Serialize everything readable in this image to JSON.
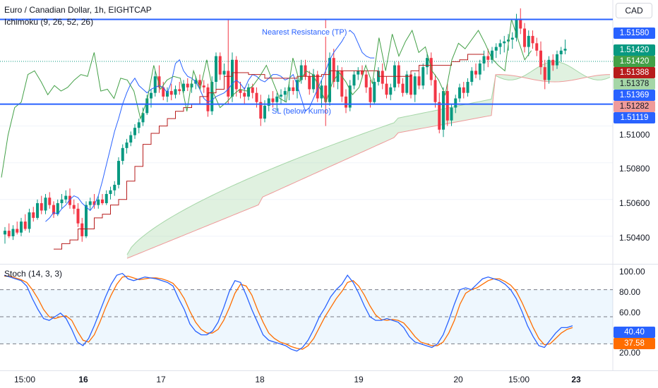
{
  "header": {
    "title": "Euro / Canadian Dollar, 1h, EIGHTCAP",
    "indicator": "Ichimoku (9, 26, 52, 26)",
    "currency": "CAD"
  },
  "colors": {
    "up": "#089981",
    "down": "#f23645",
    "blue": "#2962ff",
    "tenkan": "#2962ff",
    "kijun": "#b71c1c",
    "chikou": "#43a047",
    "cloud_green": "#a5d6a7",
    "cloud_red": "#ef9a9a",
    "stoch_k": "#2962ff",
    "stoch_d": "#ff6d00"
  },
  "lines": {
    "resistance": {
      "label": "Nearest Resistance (TP)",
      "value": "1.51580"
    },
    "support": {
      "label": "SL (below Kumo)",
      "value": "1.51119"
    }
  },
  "price_axis": {
    "ticks": [
      "1.51000",
      "1.50800",
      "1.50600",
      "1.50400"
    ],
    "tags": [
      {
        "value": "1.51580",
        "color": "#2962ff"
      },
      {
        "value": "1.51420",
        "color": "#089981"
      },
      {
        "value": "1.51420",
        "color": "#43a047"
      },
      {
        "value": "1.51388",
        "color": "#b71c1c"
      },
      {
        "value": "1.51378",
        "color": "#a5d6a7"
      },
      {
        "value": "1.51369",
        "color": "#2962ff"
      },
      {
        "value": "1.51282",
        "color": "#ef9a9a"
      },
      {
        "value": "1.51119",
        "color": "#2962ff"
      }
    ]
  },
  "stoch": {
    "label": "Stoch (14, 3, 3)",
    "ticks": [
      "100.00",
      "80.00",
      "60.00",
      "40.00",
      "20.00"
    ],
    "k_value": "40.40",
    "d_value": "37.58"
  },
  "time_axis": [
    {
      "label": "15:00",
      "bold": false
    },
    {
      "label": "16",
      "bold": true
    },
    {
      "label": "17",
      "bold": false
    },
    {
      "label": "18",
      "bold": false
    },
    {
      "label": "19",
      "bold": false
    },
    {
      "label": "20",
      "bold": false
    },
    {
      "label": "15:00",
      "bold": false
    },
    {
      "label": "23",
      "bold": true
    }
  ],
  "chart_data": {
    "type": "candlestick",
    "title": "Euro / Canadian Dollar, 1h, EIGHTCAP",
    "ylim": [
      1.5025,
      1.5167
    ],
    "horizontal_lines": [
      {
        "name": "Nearest Resistance (TP)",
        "y": 1.5158
      },
      {
        "name": "SL (below Kumo)",
        "y": 1.51119
      }
    ],
    "candles": [
      [
        1.5041,
        1.5045,
        1.5036,
        1.5043
      ],
      [
        1.5043,
        1.5047,
        1.5039,
        1.504
      ],
      [
        1.504,
        1.5046,
        1.5038,
        1.5044
      ],
      [
        1.5044,
        1.5048,
        1.5041,
        1.5042
      ],
      [
        1.5042,
        1.505,
        1.504,
        1.5048
      ],
      [
        1.5048,
        1.5052,
        1.5043,
        1.5044
      ],
      [
        1.5044,
        1.5055,
        1.5042,
        1.5053
      ],
      [
        1.5053,
        1.5056,
        1.5048,
        1.505
      ],
      [
        1.505,
        1.506,
        1.5049,
        1.5058
      ],
      [
        1.5058,
        1.5062,
        1.5052,
        1.5054
      ],
      [
        1.5054,
        1.5063,
        1.5052,
        1.5061
      ],
      [
        1.5061,
        1.5064,
        1.5055,
        1.5057
      ],
      [
        1.5057,
        1.5059,
        1.505,
        1.5052
      ],
      [
        1.5052,
        1.506,
        1.5051,
        1.5058
      ],
      [
        1.5058,
        1.5063,
        1.5055,
        1.506
      ],
      [
        1.506,
        1.5065,
        1.5058,
        1.5062
      ],
      [
        1.5062,
        1.5066,
        1.5055,
        1.5057
      ],
      [
        1.5057,
        1.506,
        1.5052,
        1.5055
      ],
      [
        1.5055,
        1.5058,
        1.5045,
        1.5047
      ],
      [
        1.5047,
        1.505,
        1.5037,
        1.504
      ],
      [
        1.504,
        1.5059,
        1.5039,
        1.5057
      ],
      [
        1.5057,
        1.5061,
        1.5054,
        1.5059
      ],
      [
        1.5059,
        1.5063,
        1.5055,
        1.5057
      ],
      [
        1.5057,
        1.5062,
        1.5055,
        1.506
      ],
      [
        1.506,
        1.5063,
        1.5057,
        1.5058
      ],
      [
        1.5058,
        1.5065,
        1.5057,
        1.5063
      ],
      [
        1.5063,
        1.5067,
        1.506,
        1.5065
      ],
      [
        1.5065,
        1.507,
        1.5062,
        1.5068
      ],
      [
        1.5068,
        1.5083,
        1.5066,
        1.5081
      ],
      [
        1.5081,
        1.509,
        1.5079,
        1.5088
      ],
      [
        1.5088,
        1.5093,
        1.5085,
        1.5091
      ],
      [
        1.5091,
        1.5097,
        1.5089,
        1.5095
      ],
      [
        1.5095,
        1.5101,
        1.5093,
        1.5099
      ],
      [
        1.5099,
        1.5104,
        1.5096,
        1.5102
      ],
      [
        1.5102,
        1.511,
        1.51,
        1.5107
      ],
      [
        1.5107,
        1.5117,
        1.5106,
        1.5115
      ],
      [
        1.5115,
        1.512,
        1.511,
        1.5118
      ],
      [
        1.5118,
        1.513,
        1.5116,
        1.5127
      ],
      [
        1.5127,
        1.5133,
        1.5118,
        1.5121
      ],
      [
        1.5121,
        1.5124,
        1.5114,
        1.5116
      ],
      [
        1.5116,
        1.5121,
        1.5113,
        1.5119
      ],
      [
        1.5119,
        1.5123,
        1.5114,
        1.5117
      ],
      [
        1.5117,
        1.5122,
        1.5115,
        1.512
      ],
      [
        1.512,
        1.5124,
        1.5117,
        1.5119
      ],
      [
        1.5119,
        1.5125,
        1.5118,
        1.5123
      ],
      [
        1.5123,
        1.5126,
        1.5119,
        1.5121
      ],
      [
        1.5121,
        1.5125,
        1.5118,
        1.5123
      ],
      [
        1.5123,
        1.5127,
        1.512,
        1.5125
      ],
      [
        1.5125,
        1.5128,
        1.512,
        1.5122
      ],
      [
        1.5122,
        1.5125,
        1.5118,
        1.5121
      ],
      [
        1.5121,
        1.5123,
        1.5105,
        1.5108
      ],
      [
        1.5108,
        1.5127,
        1.5106,
        1.5124
      ],
      [
        1.5124,
        1.514,
        1.512,
        1.5138
      ],
      [
        1.5138,
        1.514,
        1.5125,
        1.5128
      ],
      [
        1.5128,
        1.5134,
        1.512,
        1.513
      ],
      [
        1.513,
        1.5158,
        1.5112,
        1.5116
      ],
      [
        1.5116,
        1.514,
        1.5113,
        1.5136
      ],
      [
        1.5136,
        1.5138,
        1.5116,
        1.512
      ],
      [
        1.512,
        1.5124,
        1.5115,
        1.5118
      ],
      [
        1.5118,
        1.5121,
        1.5112,
        1.5116
      ],
      [
        1.5116,
        1.5123,
        1.5114,
        1.5121
      ],
      [
        1.5121,
        1.5123,
        1.5115,
        1.5118
      ],
      [
        1.5118,
        1.5121,
        1.511,
        1.5113
      ],
      [
        1.5113,
        1.5117,
        1.51,
        1.5104
      ],
      [
        1.5104,
        1.5114,
        1.5102,
        1.5111
      ],
      [
        1.5111,
        1.5117,
        1.5108,
        1.5115
      ],
      [
        1.5115,
        1.5119,
        1.511,
        1.5113
      ],
      [
        1.5113,
        1.5118,
        1.5108,
        1.5116
      ],
      [
        1.5116,
        1.512,
        1.5112,
        1.5117
      ],
      [
        1.5117,
        1.5121,
        1.5113,
        1.5119
      ],
      [
        1.5119,
        1.5124,
        1.5114,
        1.5121
      ],
      [
        1.5121,
        1.5125,
        1.5117,
        1.5119
      ],
      [
        1.5119,
        1.5127,
        1.5115,
        1.5125
      ],
      [
        1.5125,
        1.5136,
        1.5123,
        1.5133
      ],
      [
        1.5133,
        1.5136,
        1.5125,
        1.5127
      ],
      [
        1.5127,
        1.513,
        1.5117,
        1.512
      ],
      [
        1.512,
        1.5131,
        1.5118,
        1.5128
      ],
      [
        1.5128,
        1.513,
        1.5113,
        1.5115
      ],
      [
        1.5115,
        1.5125,
        1.511,
        1.5122
      ],
      [
        1.5122,
        1.5158,
        1.51,
        1.5113
      ],
      [
        1.5113,
        1.514,
        1.5111,
        1.5137
      ],
      [
        1.5137,
        1.5142,
        1.5121,
        1.5124
      ],
      [
        1.5124,
        1.5133,
        1.512,
        1.513
      ],
      [
        1.513,
        1.5132,
        1.5113,
        1.5116
      ],
      [
        1.5116,
        1.512,
        1.5107,
        1.511
      ],
      [
        1.511,
        1.5125,
        1.5108,
        1.5122
      ],
      [
        1.5122,
        1.513,
        1.512,
        1.5128
      ],
      [
        1.5128,
        1.5132,
        1.5125,
        1.513
      ],
      [
        1.513,
        1.5133,
        1.5126,
        1.5128
      ],
      [
        1.5128,
        1.513,
        1.5118,
        1.5121
      ],
      [
        1.5121,
        1.5125,
        1.511,
        1.5113
      ],
      [
        1.5113,
        1.5126,
        1.5112,
        1.5124
      ],
      [
        1.5124,
        1.5132,
        1.5122,
        1.513
      ],
      [
        1.513,
        1.5134,
        1.512,
        1.5123
      ],
      [
        1.5123,
        1.5127,
        1.5115,
        1.5117
      ],
      [
        1.5117,
        1.5123,
        1.5114,
        1.5121
      ],
      [
        1.5121,
        1.5135,
        1.5119,
        1.5133
      ],
      [
        1.5133,
        1.5135,
        1.5121,
        1.5123
      ],
      [
        1.5123,
        1.5126,
        1.5116,
        1.5118
      ],
      [
        1.5118,
        1.513,
        1.5117,
        1.5128
      ],
      [
        1.5128,
        1.513,
        1.5115,
        1.5117
      ],
      [
        1.5117,
        1.5129,
        1.5113,
        1.5127
      ],
      [
        1.5127,
        1.513,
        1.512,
        1.5122
      ],
      [
        1.5122,
        1.5134,
        1.512,
        1.5132
      ],
      [
        1.5132,
        1.514,
        1.5128,
        1.5137
      ],
      [
        1.5137,
        1.514,
        1.5122,
        1.5125
      ],
      [
        1.5125,
        1.5128,
        1.511,
        1.5113
      ],
      [
        1.5113,
        1.5118,
        1.5096,
        1.5098
      ],
      [
        1.5098,
        1.5121,
        1.5094,
        1.5119
      ],
      [
        1.5119,
        1.5123,
        1.51,
        1.5103
      ],
      [
        1.5103,
        1.5112,
        1.51,
        1.511
      ],
      [
        1.511,
        1.5117,
        1.5107,
        1.5115
      ],
      [
        1.5115,
        1.5123,
        1.5113,
        1.5121
      ],
      [
        1.5121,
        1.5124,
        1.5115,
        1.5118
      ],
      [
        1.5118,
        1.5126,
        1.5116,
        1.5124
      ],
      [
        1.5124,
        1.5132,
        1.5122,
        1.513
      ],
      [
        1.513,
        1.5134,
        1.5126,
        1.5128
      ],
      [
        1.5128,
        1.5136,
        1.5125,
        1.5134
      ],
      [
        1.5134,
        1.5141,
        1.513,
        1.5138
      ],
      [
        1.5138,
        1.5142,
        1.5132,
        1.5136
      ],
      [
        1.5136,
        1.5143,
        1.5134,
        1.5141
      ],
      [
        1.5141,
        1.5145,
        1.5137,
        1.5143
      ],
      [
        1.5143,
        1.5147,
        1.5139,
        1.5145
      ],
      [
        1.5145,
        1.5149,
        1.514,
        1.5146
      ],
      [
        1.5146,
        1.515,
        1.5141,
        1.5147
      ],
      [
        1.5147,
        1.5151,
        1.5142,
        1.5148
      ],
      [
        1.5148,
        1.5161,
        1.5146,
        1.5158
      ],
      [
        1.5158,
        1.5164,
        1.515,
        1.5153
      ],
      [
        1.5153,
        1.5156,
        1.514,
        1.5143
      ],
      [
        1.5143,
        1.5152,
        1.5138,
        1.5149
      ],
      [
        1.5149,
        1.5152,
        1.5142,
        1.5145
      ],
      [
        1.5145,
        1.5148,
        1.5138,
        1.5141
      ],
      [
        1.5141,
        1.5146,
        1.5128,
        1.5132
      ],
      [
        1.5132,
        1.5136,
        1.512,
        1.5125
      ],
      [
        1.5125,
        1.5138,
        1.5123,
        1.5136
      ],
      [
        1.5136,
        1.5139,
        1.513,
        1.5133
      ],
      [
        1.5133,
        1.5141,
        1.5131,
        1.5139
      ],
      [
        1.5139,
        1.5143,
        1.5135,
        1.5141
      ],
      [
        1.5141,
        1.5147,
        1.5139,
        1.5142
      ]
    ],
    "tenkan_sen": [
      1.5048,
      1.505,
      1.5053,
      1.5052,
      1.5055,
      1.5057,
      1.506,
      1.5062,
      1.5061,
      1.5058,
      1.5056,
      1.5054,
      1.5057,
      1.5062,
      1.507,
      1.5079,
      1.5088,
      1.5097,
      1.5104,
      1.5112,
      1.5118,
      1.5123,
      1.5126,
      1.5122,
      1.512,
      1.5118,
      1.512,
      1.5121,
      1.5122,
      1.5121,
      1.5118,
      1.5124,
      1.5134,
      1.5136,
      1.513,
      1.5127,
      1.5126,
      1.5124,
      1.512,
      1.5115,
      1.5113,
      1.5114,
      1.5116,
      1.5117,
      1.5118,
      1.512,
      1.5123,
      1.5125,
      1.5123,
      1.512,
      1.5125,
      1.5128,
      1.5127,
      1.5125,
      1.5124,
      1.5126,
      1.5128,
      1.5128,
      1.5127,
      1.5125,
      1.5126,
      1.5128,
      1.5122,
      1.5115,
      1.5108,
      1.511,
      1.5115,
      1.512,
      1.5125,
      1.513,
      1.5136,
      1.514,
      1.5143,
      1.5146,
      1.515,
      1.5152,
      1.515,
      1.5145,
      1.514,
      1.5138,
      1.5137,
      1.5137
    ],
    "tenkan_start": 10,
    "kijun_sen": [
      1.5033,
      1.5036,
      1.5038,
      1.5044,
      1.5044,
      1.505,
      1.5052,
      1.5057,
      1.506,
      1.507,
      1.5078,
      1.509,
      1.5096,
      1.51,
      1.5104,
      1.5108,
      1.511,
      1.5112,
      1.5116,
      1.5118,
      1.512,
      1.5127,
      1.5129,
      1.5129,
      1.5128,
      1.5128,
      1.5126,
      1.5126,
      1.5126,
      1.5126,
      1.5127,
      1.5127,
      1.5127,
      1.5128,
      1.513,
      1.513,
      1.513,
      1.513,
      1.513,
      1.513,
      1.5127,
      1.5127,
      1.5127,
      1.5127,
      1.513,
      1.5133,
      1.5133,
      1.5133,
      1.5133,
      1.5135,
      1.5136,
      1.5139,
      1.5139,
      1.5139
    ],
    "kijun_step": 2,
    "kijun_start": 12,
    "chikou_span": [
      1.5072,
      1.5095,
      1.511,
      1.5113,
      1.5128,
      1.513,
      1.5124,
      1.5117,
      1.5122,
      1.5119,
      1.5121,
      1.5125,
      1.5128,
      1.5127,
      1.514,
      1.5119,
      1.512,
      1.5115,
      1.5126,
      1.5125,
      1.5119,
      1.5104,
      1.5114,
      1.5133,
      1.512,
      1.5125,
      1.5127,
      1.5126,
      1.5108,
      1.513,
      1.512,
      1.5136,
      1.5118,
      1.511,
      1.5113,
      1.5117,
      1.512,
      1.5119,
      1.5122,
      1.5127,
      1.5133,
      1.5124,
      1.5115,
      1.5113,
      1.5137,
      1.5124,
      1.513,
      1.5128,
      1.5121,
      1.5113,
      1.5124,
      1.5129,
      1.5124,
      1.5117,
      1.5121,
      1.5133,
      1.5123,
      1.5148,
      1.513,
      1.515,
      1.5138,
      1.5146,
      1.5152,
      1.514,
      1.5143,
      1.513,
      1.5125,
      1.5117,
      1.5136,
      1.5145,
      1.5142,
      1.5147,
      1.5152,
      1.5145,
      1.5137,
      1.5133,
      1.513,
      1.5158,
      1.5147,
      1.5136,
      1.5141
    ],
    "chikou_step": 1.5,
    "kumo": {
      "x_start": 0,
      "span_a": [],
      "span_b": []
    },
    "stochastic": {
      "k": [
        96,
        94,
        92,
        90,
        84,
        70,
        58,
        48,
        46,
        50,
        54,
        48,
        36,
        22,
        18,
        26,
        40,
        56,
        72,
        86,
        96,
        98,
        92,
        90,
        92,
        94,
        93,
        92,
        90,
        88,
        84,
        70,
        58,
        42,
        34,
        30,
        30,
        34,
        44,
        60,
        78,
        90,
        88,
        74,
        58,
        44,
        30,
        24,
        22,
        20,
        18,
        14,
        12,
        16,
        24,
        36,
        50,
        60,
        72,
        80,
        86,
        96,
        88,
        76,
        62,
        50,
        46,
        46,
        48,
        46,
        44,
        38,
        28,
        22,
        20,
        18,
        16,
        20,
        30,
        46,
        64,
        80,
        82,
        80,
        86,
        92,
        94,
        92,
        90,
        86,
        80,
        70,
        56,
        40,
        28,
        18,
        16,
        24,
        32,
        38,
        38,
        40
      ],
      "d": [
        95,
        95,
        93,
        91,
        88,
        80,
        70,
        58,
        50,
        48,
        50,
        51,
        46,
        34,
        24,
        22,
        30,
        44,
        60,
        74,
        86,
        94,
        95,
        93,
        91,
        92,
        93,
        93,
        92,
        90,
        87,
        80,
        70,
        56,
        44,
        36,
        32,
        32,
        36,
        46,
        60,
        76,
        86,
        84,
        74,
        58,
        44,
        32,
        26,
        22,
        20,
        17,
        15,
        14,
        18,
        26,
        38,
        50,
        60,
        70,
        78,
        88,
        90,
        84,
        74,
        62,
        52,
        47,
        46,
        47,
        46,
        43,
        36,
        28,
        22,
        20,
        18,
        18,
        22,
        32,
        46,
        64,
        76,
        80,
        82,
        86,
        90,
        92,
        92,
        89,
        85,
        78,
        66,
        52,
        38,
        26,
        19,
        20,
        26,
        32,
        36,
        38
      ]
    }
  }
}
